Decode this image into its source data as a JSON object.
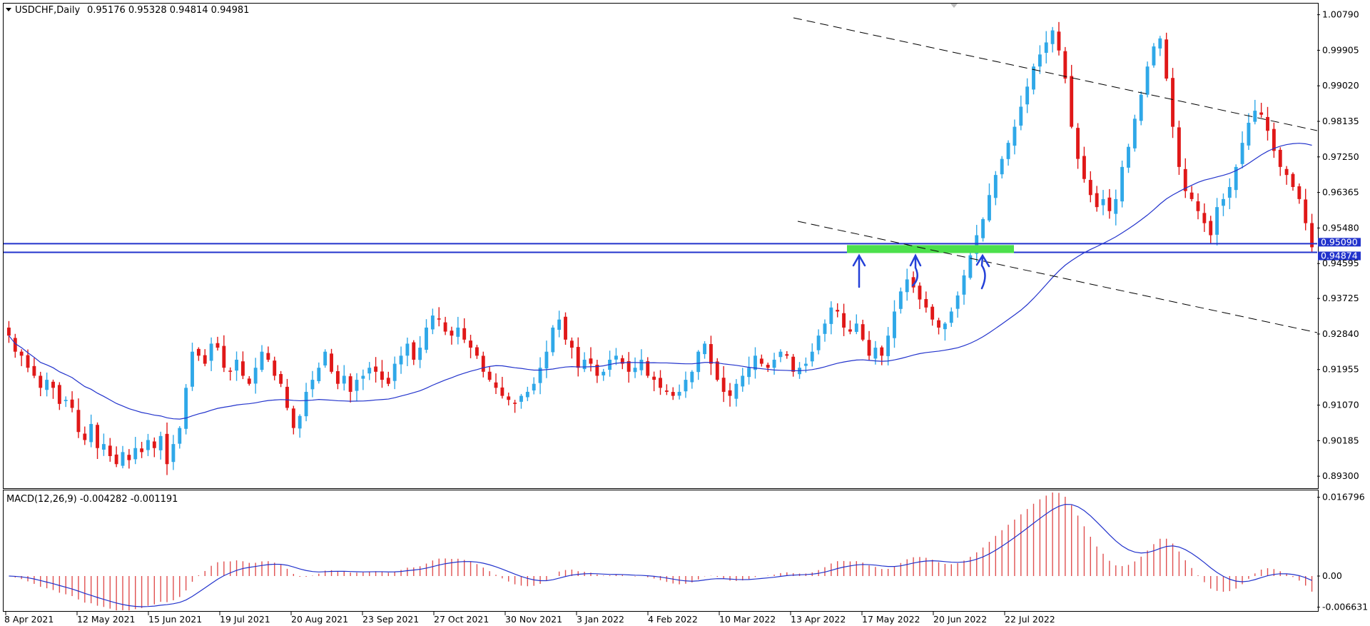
{
  "header": {
    "symbol": "USDCHF,Daily",
    "ohlc": "0.95176 0.95328 0.94814 0.94981"
  },
  "macd_header": "MACD(12,26,9) -0.004282 -0.001191",
  "colors": {
    "bull": "#2FA8E8",
    "bear": "#E01818",
    "ma": "#2233CC",
    "support_line": "#2233CC",
    "zone": "#4CE04C",
    "macd_hist": "#E05050",
    "macd_signal": "#2233CC",
    "trend": "#000000"
  },
  "chart_data": [
    {
      "type": "candlestick",
      "title": "USDCHF,Daily",
      "y_ticks": [
        "1.00790",
        "0.99905",
        "0.99020",
        "0.98135",
        "0.97250",
        "0.96365",
        "0.95480",
        "0.94595",
        "0.93725",
        "0.92840",
        "0.91955",
        "0.91070",
        "0.90185",
        "0.89300"
      ],
      "ylim": [
        0.89,
        1.0105
      ],
      "x_ticks": [
        "8 Apr 2021",
        "12 May 2021",
        "15 Jun 2021",
        "19 Jul 2021",
        "20 Aug 2021",
        "23 Sep 2021",
        "27 Oct 2021",
        "30 Nov 2021",
        "3 Jan 2022",
        "4 Feb 2022",
        "10 Mar 2022",
        "13 Apr 2022",
        "17 May 2022",
        "20 Jun 2022",
        "22 Jul 2022"
      ],
      "price_labels": [
        "0.95090",
        "0.94874"
      ],
      "support_levels": [
        0.9509,
        0.94874
      ],
      "ma_period": 50,
      "close_series": [
        0.928,
        0.924,
        0.923,
        0.92,
        0.918,
        0.915,
        0.917,
        0.915,
        0.911,
        0.912,
        0.91,
        0.904,
        0.902,
        0.906,
        0.9,
        0.901,
        0.898,
        0.896,
        0.899,
        0.897,
        0.9,
        0.899,
        0.902,
        0.9,
        0.903,
        0.896,
        0.901,
        0.905,
        0.915,
        0.924,
        0.923,
        0.921,
        0.926,
        0.925,
        0.92,
        0.919,
        0.922,
        0.918,
        0.916,
        0.92,
        0.924,
        0.922,
        0.918,
        0.916,
        0.91,
        0.905,
        0.908,
        0.914,
        0.917,
        0.92,
        0.924,
        0.919,
        0.916,
        0.918,
        0.914,
        0.917,
        0.918,
        0.92,
        0.919,
        0.917,
        0.916,
        0.921,
        0.923,
        0.926,
        0.922,
        0.925,
        0.93,
        0.933,
        0.932,
        0.929,
        0.928,
        0.93,
        0.927,
        0.925,
        0.923,
        0.919,
        0.917,
        0.915,
        0.913,
        0.912,
        0.911,
        0.913,
        0.914,
        0.916,
        0.92,
        0.924,
        0.93,
        0.932,
        0.927,
        0.925,
        0.92,
        0.922,
        0.921,
        0.918,
        0.919,
        0.922,
        0.923,
        0.921,
        0.919,
        0.92,
        0.922,
        0.918,
        0.917,
        0.915,
        0.914,
        0.913,
        0.914,
        0.917,
        0.919,
        0.924,
        0.926,
        0.921,
        0.917,
        0.914,
        0.913,
        0.916,
        0.918,
        0.92,
        0.923,
        0.921,
        0.92,
        0.922,
        0.924,
        0.923,
        0.919,
        0.92,
        0.921,
        0.924,
        0.928,
        0.931,
        0.935,
        0.934,
        0.93,
        0.929,
        0.931,
        0.927,
        0.923,
        0.925,
        0.923,
        0.928,
        0.934,
        0.939,
        0.942,
        0.94,
        0.937,
        0.935,
        0.932,
        0.93,
        0.931,
        0.934,
        0.938,
        0.943,
        0.948,
        0.953,
        0.957,
        0.963,
        0.968,
        0.972,
        0.976,
        0.98,
        0.985,
        0.99,
        0.995,
        0.998,
        1.001,
        1.004,
        0.999,
        0.992,
        0.98,
        0.972,
        0.967,
        0.963,
        0.96,
        0.962,
        0.959,
        0.962,
        0.97,
        0.975,
        0.982,
        0.988,
        0.995,
        1.0,
        1.002,
        0.992,
        0.98,
        0.97,
        0.964,
        0.962,
        0.959,
        0.956,
        0.953,
        0.96,
        0.962,
        0.965,
        0.97,
        0.976,
        0.981,
        0.984,
        0.983,
        0.979,
        0.974,
        0.97,
        0.968,
        0.965,
        0.962,
        0.956,
        0.95
      ]
    },
    {
      "type": "macd",
      "title": "MACD(12,26,9) -0.004282 -0.001191",
      "y_ticks": [
        "0.016796",
        "0.00",
        "-0.006631"
      ],
      "ylim": [
        -0.0073,
        0.0178
      ]
    }
  ]
}
